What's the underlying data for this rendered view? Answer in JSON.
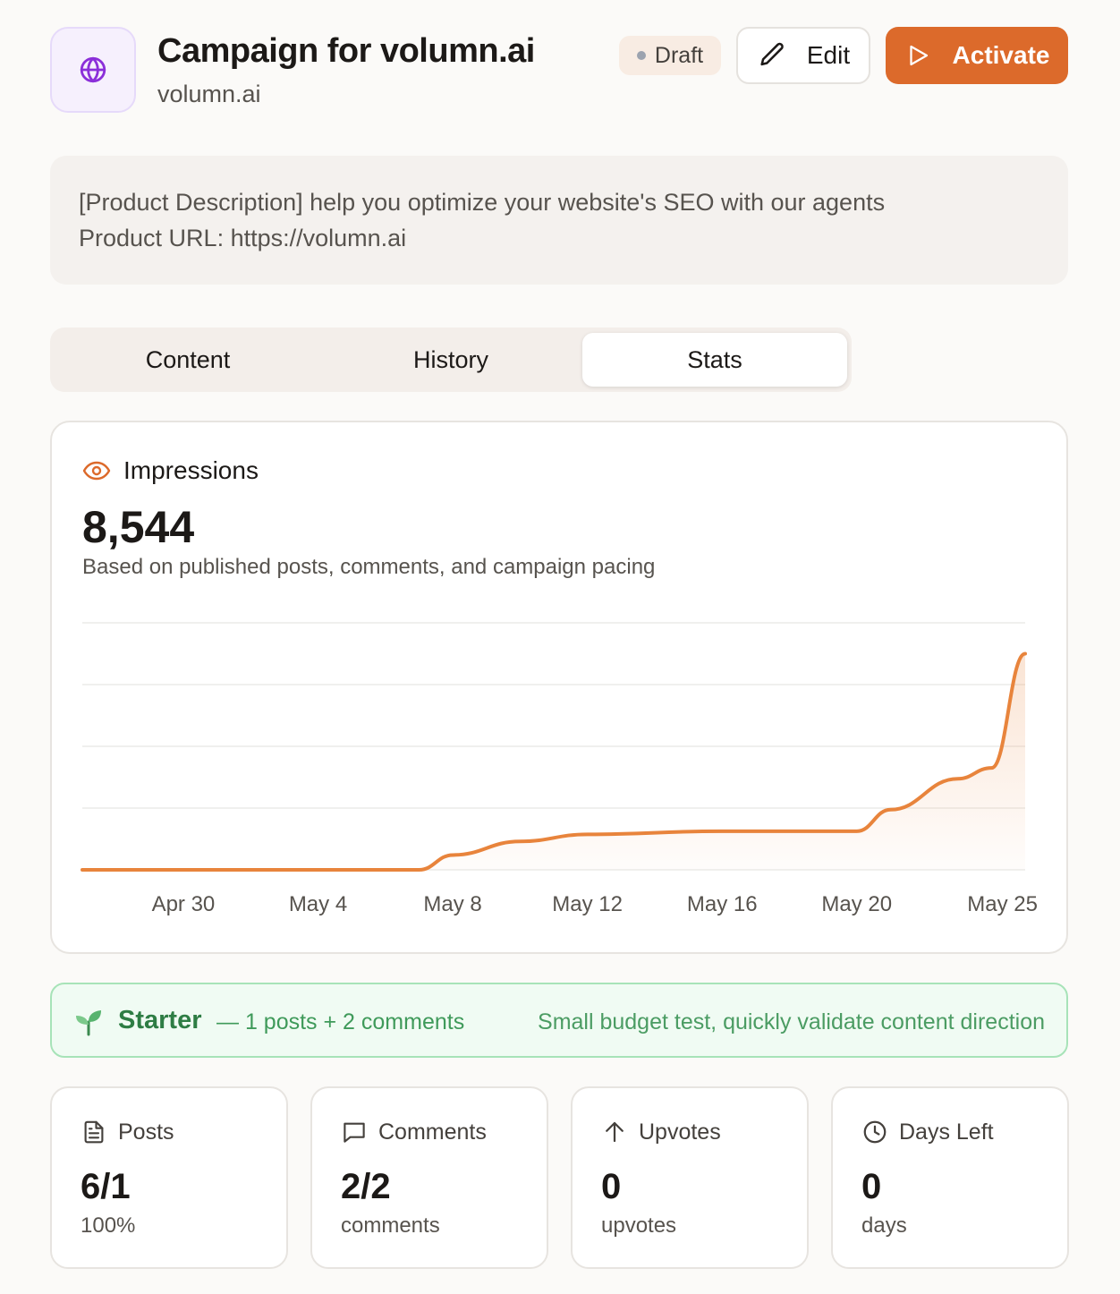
{
  "header": {
    "title": "Campaign for volumn.ai",
    "subtitle": "volumn.ai",
    "status": "Draft",
    "edit_label": "Edit",
    "activate_label": "Activate"
  },
  "description": {
    "line1": "[Product Description] help you optimize your website's SEO with our agents",
    "line2": "Product URL: https://volumn.ai"
  },
  "tabs": [
    {
      "label": "Content",
      "active": false
    },
    {
      "label": "History",
      "active": false
    },
    {
      "label": "Stats",
      "active": true
    }
  ],
  "impressions": {
    "label": "Impressions",
    "value": "8,544",
    "note": "Based on published posts, comments, and campaign pacing"
  },
  "chart_data": {
    "type": "area",
    "title": "",
    "xlabel": "",
    "ylabel": "",
    "x": [
      "2025-04-27",
      "2025-04-30",
      "2025-05-04",
      "2025-05-07",
      "2025-05-08",
      "2025-05-10",
      "2025-05-12",
      "2025-05-16",
      "2025-05-20",
      "2025-05-21",
      "2025-05-23",
      "2025-05-24",
      "2025-05-25"
    ],
    "values": [
      0,
      0,
      0,
      0,
      480,
      920,
      1150,
      1250,
      1250,
      1950,
      2950,
      3300,
      7000
    ],
    "tick_labels": [
      "Apr 30",
      "May 4",
      "May 8",
      "May 12",
      "May 16",
      "May 20",
      "May 25"
    ],
    "grid": true,
    "color": "#e8843c"
  },
  "tier": {
    "icon": "seedling-icon",
    "name": "Starter",
    "detail": "— 1 posts + 2 comments",
    "description": "Small budget test, quickly validate content direction"
  },
  "stats": [
    {
      "label": "Posts",
      "icon": "document-icon",
      "value": "6/1",
      "sub": "100%"
    },
    {
      "label": "Comments",
      "icon": "comment-icon",
      "value": "2/2",
      "sub": "comments"
    },
    {
      "label": "Upvotes",
      "icon": "arrow-up-icon",
      "value": "0",
      "sub": "upvotes"
    },
    {
      "label": "Days Left",
      "icon": "clock-icon",
      "value": "0",
      "sub": "days"
    }
  ],
  "colors": {
    "accent": "#dc6a2b",
    "brand_purple": "#8b2fd9",
    "success": "#2e7d44"
  }
}
